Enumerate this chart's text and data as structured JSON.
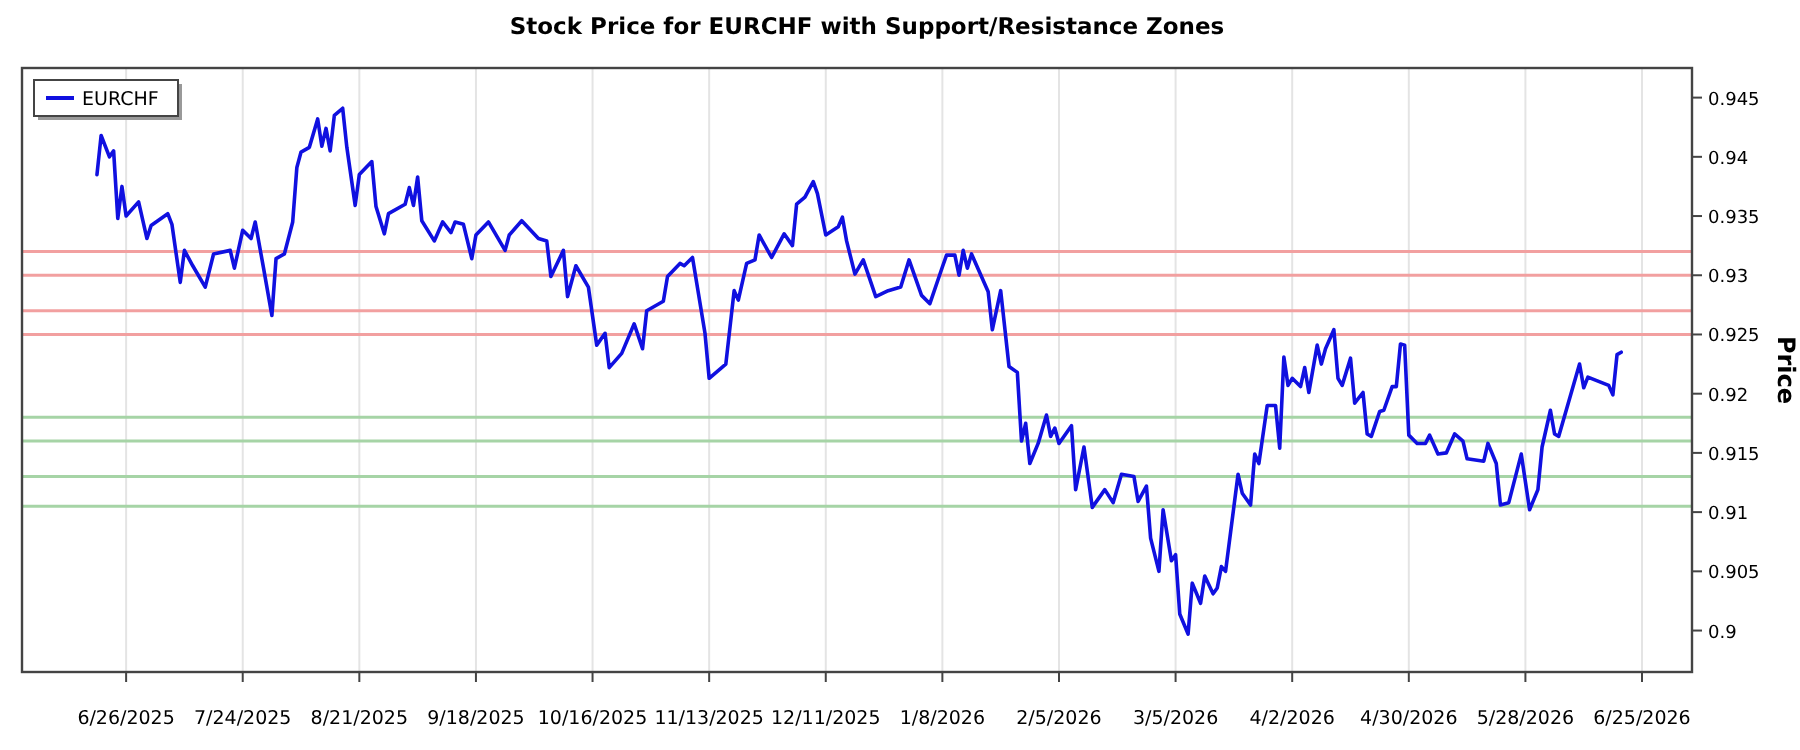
{
  "chart_data": {
    "type": "line",
    "title": "Stock Price for EURCHF with Support/Resistance Zones",
    "ylabel": "Price",
    "x": [
      "2025-06-19",
      "2025-06-20",
      "2025-06-22",
      "2025-06-23",
      "2025-06-24",
      "2025-06-25",
      "2025-06-26",
      "2025-06-29",
      "2025-07-01",
      "2025-07-02",
      "2025-07-06",
      "2025-07-07",
      "2025-07-09",
      "2025-07-10",
      "2025-07-12",
      "2025-07-15",
      "2025-07-17",
      "2025-07-21",
      "2025-07-22",
      "2025-07-24",
      "2025-07-26",
      "2025-07-27",
      "2025-07-29",
      "2025-07-31",
      "2025-08-01",
      "2025-08-03",
      "2025-08-05",
      "2025-08-06",
      "2025-08-07",
      "2025-08-09",
      "2025-08-11",
      "2025-08-12",
      "2025-08-13",
      "2025-08-14",
      "2025-08-15",
      "2025-08-17",
      "2025-08-18",
      "2025-08-20",
      "2025-08-21",
      "2025-08-24",
      "2025-08-25",
      "2025-08-27",
      "2025-08-28",
      "2025-09-01",
      "2025-09-02",
      "2025-09-03",
      "2025-09-04",
      "2025-09-05",
      "2025-09-08",
      "2025-09-10",
      "2025-09-12",
      "2025-09-13",
      "2025-09-15",
      "2025-09-17",
      "2025-09-18",
      "2025-09-21",
      "2025-09-25",
      "2025-09-26",
      "2025-09-29",
      "2025-10-03",
      "2025-10-05",
      "2025-10-06",
      "2025-10-09",
      "2025-10-10",
      "2025-10-12",
      "2025-10-15",
      "2025-10-17",
      "2025-10-19",
      "2025-10-20",
      "2025-10-23",
      "2025-10-26",
      "2025-10-28",
      "2025-10-29",
      "2025-11-02",
      "2025-11-03",
      "2025-11-06",
      "2025-11-07",
      "2025-11-09",
      "2025-11-12",
      "2025-11-13",
      "2025-11-17",
      "2025-11-19",
      "2025-11-20",
      "2025-11-22",
      "2025-11-24",
      "2025-11-25",
      "2025-11-28",
      "2025-12-01",
      "2025-12-03",
      "2025-12-04",
      "2025-12-06",
      "2025-12-08",
      "2025-12-09",
      "2025-12-11",
      "2025-12-14",
      "2025-12-15",
      "2025-12-16",
      "2025-12-18",
      "2025-12-20",
      "2025-12-23",
      "2025-12-26",
      "2025-12-29",
      "2025-12-31",
      "2026-01-03",
      "2026-01-05",
      "2026-01-08",
      "2026-01-09",
      "2026-01-11",
      "2026-01-12",
      "2026-01-13",
      "2026-01-14",
      "2026-01-15",
      "2026-01-19",
      "2026-01-20",
      "2026-01-22",
      "2026-01-24",
      "2026-01-26",
      "2026-01-27",
      "2026-01-28",
      "2026-01-29",
      "2026-01-31",
      "2026-02-02",
      "2026-02-03",
      "2026-02-04",
      "2026-02-05",
      "2026-02-08",
      "2026-02-09",
      "2026-02-11",
      "2026-02-13",
      "2026-02-16",
      "2026-02-18",
      "2026-02-20",
      "2026-02-23",
      "2026-02-24",
      "2026-02-26",
      "2026-02-27",
      "2026-03-01",
      "2026-03-02",
      "2026-03-04",
      "2026-03-05",
      "2026-03-06",
      "2026-03-08",
      "2026-03-09",
      "2026-03-11",
      "2026-03-12",
      "2026-03-14",
      "2026-03-15",
      "2026-03-16",
      "2026-03-17",
      "2026-03-20",
      "2026-03-21",
      "2026-03-23",
      "2026-03-24",
      "2026-03-25",
      "2026-03-27",
      "2026-03-29",
      "2026-03-30",
      "2026-03-31",
      "2026-04-01",
      "2026-04-02",
      "2026-04-04",
      "2026-04-05",
      "2026-04-06",
      "2026-04-08",
      "2026-04-09",
      "2026-04-10",
      "2026-04-12",
      "2026-04-13",
      "2026-04-14",
      "2026-04-16",
      "2026-04-17",
      "2026-04-19",
      "2026-04-20",
      "2026-04-21",
      "2026-04-23",
      "2026-04-24",
      "2026-04-26",
      "2026-04-27",
      "2026-04-28",
      "2026-04-29",
      "2026-04-30",
      "2026-05-02",
      "2026-05-04",
      "2026-05-05",
      "2026-05-07",
      "2026-05-09",
      "2026-05-11",
      "2026-05-13",
      "2026-05-14",
      "2026-05-18",
      "2026-05-19",
      "2026-05-21",
      "2026-05-22",
      "2026-05-24",
      "2026-05-27",
      "2026-05-29",
      "2026-05-31",
      "2026-06-01",
      "2026-06-03",
      "2026-06-04",
      "2026-06-05",
      "2026-06-10",
      "2026-06-11",
      "2026-06-12",
      "2026-06-17",
      "2026-06-18",
      "2026-06-19",
      "2026-06-20"
    ],
    "series": [
      {
        "name": "EURCHF",
        "color": "#1010e0",
        "values": [
          0.9385,
          0.9418,
          0.94,
          0.9405,
          0.9348,
          0.9375,
          0.935,
          0.9362,
          0.9331,
          0.9342,
          0.9352,
          0.9343,
          0.9294,
          0.9321,
          0.9308,
          0.929,
          0.9318,
          0.9321,
          0.9306,
          0.9338,
          0.9331,
          0.9345,
          0.9306,
          0.9266,
          0.9314,
          0.9318,
          0.9345,
          0.9391,
          0.9404,
          0.9408,
          0.9432,
          0.9409,
          0.9424,
          0.9405,
          0.9435,
          0.9441,
          0.9408,
          0.9359,
          0.9385,
          0.9396,
          0.9358,
          0.9335,
          0.9352,
          0.936,
          0.9374,
          0.9359,
          0.9383,
          0.9346,
          0.9329,
          0.9345,
          0.9336,
          0.9345,
          0.9343,
          0.9314,
          0.9334,
          0.9345,
          0.9321,
          0.9334,
          0.9346,
          0.9331,
          0.9329,
          0.9299,
          0.9321,
          0.9282,
          0.9308,
          0.929,
          0.9241,
          0.9251,
          0.9222,
          0.9234,
          0.9259,
          0.9238,
          0.927,
          0.9278,
          0.9299,
          0.931,
          0.9308,
          0.9315,
          0.9251,
          0.9213,
          0.9225,
          0.9287,
          0.9279,
          0.931,
          0.9313,
          0.9334,
          0.9315,
          0.9335,
          0.9325,
          0.936,
          0.9366,
          0.9379,
          0.9369,
          0.9334,
          0.9341,
          0.9349,
          0.9329,
          0.9301,
          0.9313,
          0.9282,
          0.9287,
          0.929,
          0.9313,
          0.9283,
          0.9276,
          0.9307,
          0.9317,
          0.9317,
          0.93,
          0.9321,
          0.9306,
          0.9318,
          0.9286,
          0.9254,
          0.9287,
          0.9223,
          0.9218,
          0.916,
          0.9175,
          0.9141,
          0.9158,
          0.9182,
          0.9164,
          0.9171,
          0.9158,
          0.9173,
          0.9119,
          0.9155,
          0.9104,
          0.9119,
          0.9108,
          0.9132,
          0.913,
          0.9109,
          0.9122,
          0.9078,
          0.905,
          0.9102,
          0.9059,
          0.9064,
          0.9014,
          0.8997,
          0.904,
          0.9023,
          0.9046,
          0.9031,
          0.9036,
          0.9054,
          0.905,
          0.9132,
          0.9116,
          0.9106,
          0.9149,
          0.9141,
          0.919,
          0.919,
          0.9154,
          0.9231,
          0.9207,
          0.9213,
          0.9206,
          0.9222,
          0.9201,
          0.9241,
          0.9225,
          0.9238,
          0.9254,
          0.9213,
          0.9207,
          0.923,
          0.9192,
          0.9201,
          0.9166,
          0.9164,
          0.9185,
          0.9186,
          0.9206,
          0.9206,
          0.9242,
          0.9241,
          0.9165,
          0.9158,
          0.9158,
          0.9165,
          0.9149,
          0.915,
          0.9166,
          0.916,
          0.9145,
          0.9143,
          0.9158,
          0.9141,
          0.9106,
          0.9108,
          0.9149,
          0.9102,
          0.9119,
          0.9155,
          0.9186,
          0.9166,
          0.9164,
          0.9225,
          0.9205,
          0.9214,
          0.9207,
          0.9199,
          0.9233,
          0.9235
        ]
      }
    ],
    "xlim": [
      "2025-06-01",
      "2026-07-07"
    ],
    "xticks": [
      {
        "value": "2025-06-26",
        "label": "6/26/2025"
      },
      {
        "value": "2025-07-24",
        "label": "7/24/2025"
      },
      {
        "value": "2025-08-21",
        "label": "8/21/2025"
      },
      {
        "value": "2025-09-18",
        "label": "9/18/2025"
      },
      {
        "value": "2025-10-16",
        "label": "10/16/2025"
      },
      {
        "value": "2025-11-13",
        "label": "11/13/2025"
      },
      {
        "value": "2025-12-11",
        "label": "12/11/2025"
      },
      {
        "value": "2026-01-08",
        "label": "1/8/2026"
      },
      {
        "value": "2026-02-05",
        "label": "2/5/2026"
      },
      {
        "value": "2026-03-05",
        "label": "3/5/2026"
      },
      {
        "value": "2026-04-02",
        "label": "4/2/2026"
      },
      {
        "value": "2026-04-30",
        "label": "4/30/2026"
      },
      {
        "value": "2026-05-28",
        "label": "5/28/2026"
      },
      {
        "value": "2026-06-25",
        "label": "6/25/2026"
      }
    ],
    "ylim": [
      0.8965,
      0.9475
    ],
    "yticks": [
      0.9,
      0.905,
      0.91,
      0.915,
      0.92,
      0.925,
      0.93,
      0.935,
      0.94,
      0.945
    ],
    "ref_lines": [
      {
        "axis": "y",
        "value": 0.932,
        "color": "#f2a0a0"
      },
      {
        "axis": "y",
        "value": 0.93,
        "color": "#f2a0a0"
      },
      {
        "axis": "y",
        "value": 0.927,
        "color": "#f2a0a0"
      },
      {
        "axis": "y",
        "value": 0.925,
        "color": "#f2a0a0"
      },
      {
        "axis": "y",
        "value": 0.918,
        "color": "#a6d4a6"
      },
      {
        "axis": "y",
        "value": 0.916,
        "color": "#a6d4a6"
      },
      {
        "axis": "y",
        "value": 0.913,
        "color": "#a6d4a6"
      },
      {
        "axis": "y",
        "value": 0.9105,
        "color": "#a6d4a6"
      }
    ],
    "grid": "x",
    "legend": "top left",
    "line_style": "solid",
    "marker": "none"
  }
}
